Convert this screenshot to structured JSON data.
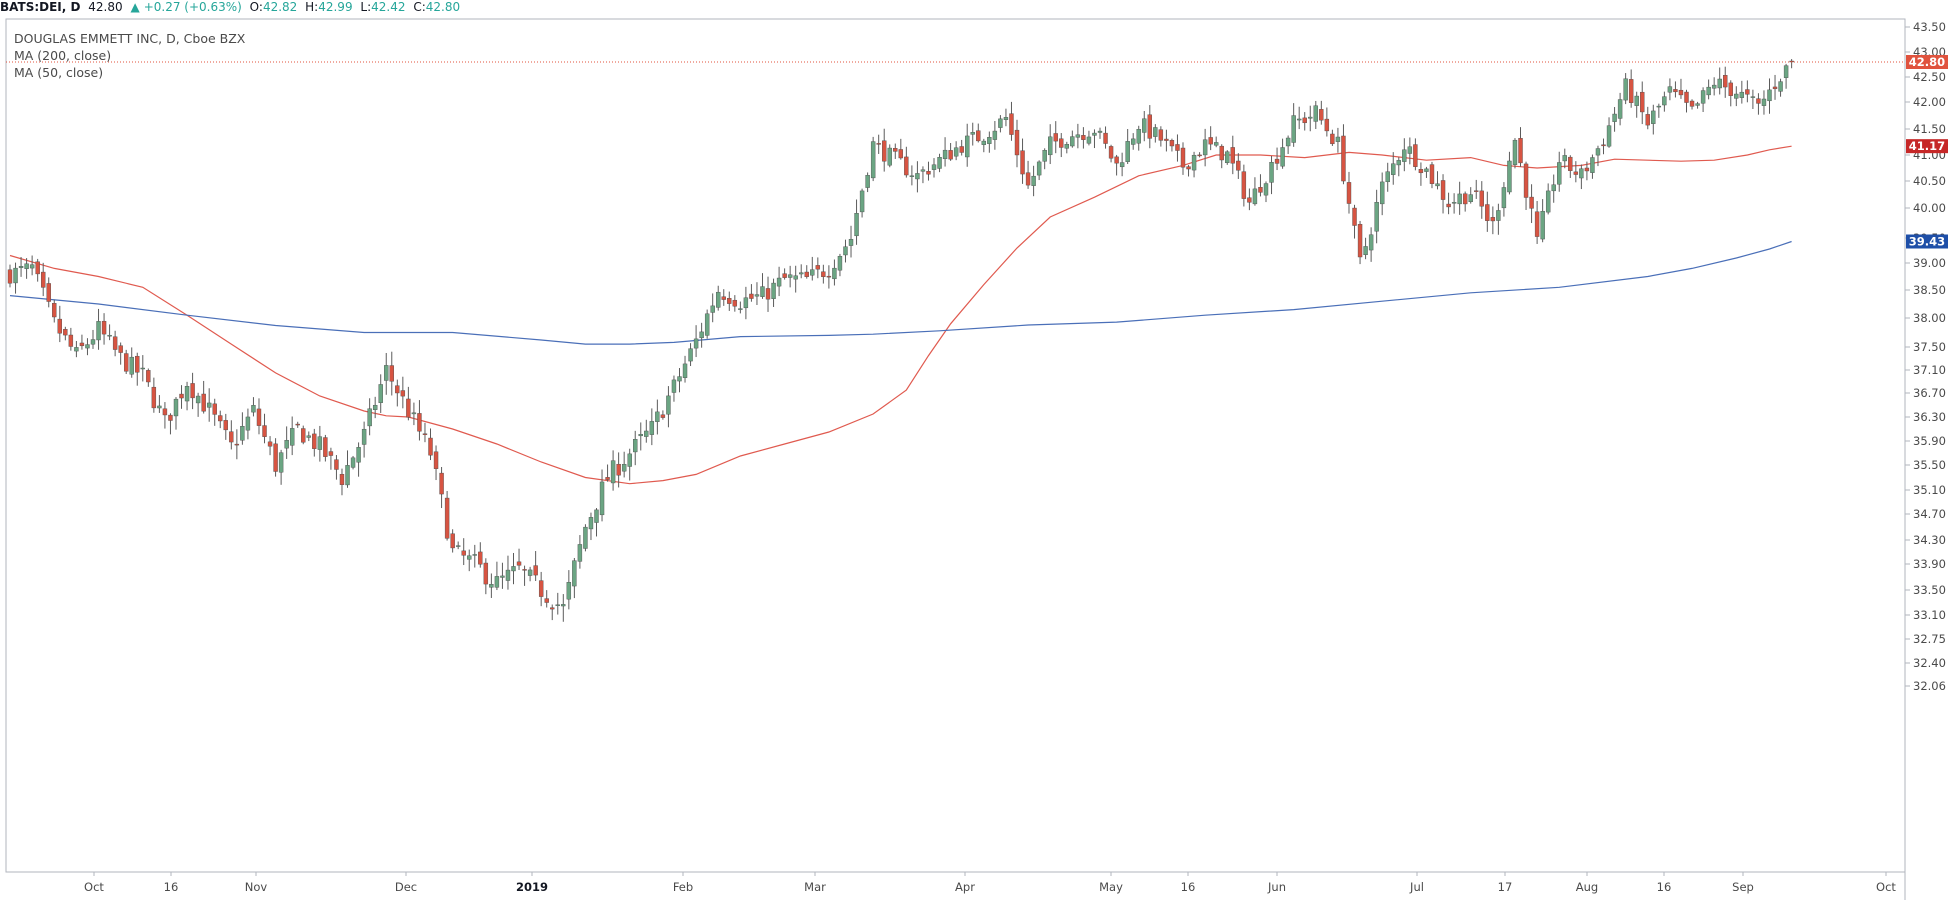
{
  "topbar": {
    "symbol": "BATS:DEI, D",
    "last": "42.80",
    "change": "+0.27 (+0.63%)",
    "o_label": "O:",
    "o": "42.82",
    "h_label": "H:",
    "h": "42.99",
    "l_label": "L:",
    "l": "42.42",
    "c_label": "C:",
    "c": "42.80"
  },
  "legend": {
    "title": "DOUGLAS EMMETT INC, D, Cboe BZX",
    "ma200": "MA (200, close)",
    "ma50": "MA (50, close)"
  },
  "colors": {
    "up_fill": "#6ba583",
    "down_fill": "#d75442",
    "wick": "#5b5b5b",
    "ma50": "#e05a4f",
    "ma200": "#4a6fb8",
    "price_tag": "#e0533e",
    "ma50_tag": "#c62828",
    "ma200_tag": "#1e4fa8",
    "axis": "#b2b5be"
  },
  "chart_data": {
    "type": "candlestick",
    "title": "DOUGLAS EMMETT INC, D, Cboe BZX",
    "ylim": [
      31.8,
      43.7
    ],
    "y_ticks": [
      "43.50",
      "43.00",
      "42.50",
      "42.00",
      "41.50",
      "41.00",
      "40.50",
      "40.00",
      "39.50",
      "39.00",
      "38.50",
      "38.00",
      "37.50",
      "37.10",
      "36.70",
      "36.30",
      "35.90",
      "35.50",
      "35.10",
      "34.70",
      "34.30",
      "33.90",
      "33.50",
      "33.10",
      "32.75",
      "32.40",
      "32.06"
    ],
    "x_ticks": [
      {
        "label": "Oct",
        "bold": false
      },
      {
        "label": "16",
        "bold": false
      },
      {
        "label": "Nov",
        "bold": false
      },
      {
        "label": "Dec",
        "bold": false
      },
      {
        "label": "2019",
        "bold": true
      },
      {
        "label": "Feb",
        "bold": false
      },
      {
        "label": "Mar",
        "bold": false
      },
      {
        "label": "Apr",
        "bold": false
      },
      {
        "label": "May",
        "bold": false
      },
      {
        "label": "16",
        "bold": false
      },
      {
        "label": "Jun",
        "bold": false
      },
      {
        "label": "Jul",
        "bold": false
      },
      {
        "label": "17",
        "bold": false
      },
      {
        "label": "Aug",
        "bold": false
      },
      {
        "label": "16",
        "bold": false
      },
      {
        "label": "Sep",
        "bold": false
      },
      {
        "label": "Oct",
        "bold": false
      }
    ],
    "anchor_points": [
      [
        0,
        38.8
      ],
      [
        4,
        38.9
      ],
      [
        8,
        37.9
      ],
      [
        12,
        37.35
      ],
      [
        16,
        37.8
      ],
      [
        20,
        37.3
      ],
      [
        24,
        37.0
      ],
      [
        28,
        36.2
      ],
      [
        32,
        36.9
      ],
      [
        36,
        36.4
      ],
      [
        40,
        35.8
      ],
      [
        44,
        36.4
      ],
      [
        48,
        35.5
      ],
      [
        52,
        36.1
      ],
      [
        56,
        35.8
      ],
      [
        60,
        35.3
      ],
      [
        64,
        36.0
      ],
      [
        68,
        37.1
      ],
      [
        72,
        36.4
      ],
      [
        76,
        35.7
      ],
      [
        80,
        34.1
      ],
      [
        84,
        33.9
      ],
      [
        88,
        33.6
      ],
      [
        92,
        33.8
      ],
      [
        96,
        33.5
      ],
      [
        100,
        33.2
      ],
      [
        104,
        34.5
      ],
      [
        108,
        35.3
      ],
      [
        112,
        35.7
      ],
      [
        116,
        36.1
      ],
      [
        120,
        36.8
      ],
      [
        124,
        37.6
      ],
      [
        128,
        38.5
      ],
      [
        132,
        38.3
      ],
      [
        136,
        38.4
      ],
      [
        140,
        38.7
      ],
      [
        144,
        38.7
      ],
      [
        148,
        38.9
      ],
      [
        152,
        39.5
      ],
      [
        156,
        41.2
      ],
      [
        160,
        40.9
      ],
      [
        164,
        40.6
      ],
      [
        168,
        40.9
      ],
      [
        172,
        41.2
      ],
      [
        176,
        41.4
      ],
      [
        180,
        41.7
      ],
      [
        184,
        40.4
      ],
      [
        188,
        41.2
      ],
      [
        192,
        41.4
      ],
      [
        196,
        41.5
      ],
      [
        200,
        40.8
      ],
      [
        204,
        41.6
      ],
      [
        208,
        41.3
      ],
      [
        212,
        40.8
      ],
      [
        216,
        41.2
      ],
      [
        220,
        41.0
      ],
      [
        224,
        40.1
      ],
      [
        228,
        40.8
      ],
      [
        232,
        41.6
      ],
      [
        236,
        41.8
      ],
      [
        240,
        41.2
      ],
      [
        244,
        39.0
      ],
      [
        248,
        40.4
      ],
      [
        252,
        41.2
      ],
      [
        256,
        40.7
      ],
      [
        260,
        40.1
      ],
      [
        264,
        40.3
      ],
      [
        268,
        39.7
      ],
      [
        272,
        41.3
      ],
      [
        276,
        39.4
      ],
      [
        280,
        40.9
      ],
      [
        284,
        40.6
      ],
      [
        288,
        41.3
      ],
      [
        292,
        42.3
      ],
      [
        296,
        41.6
      ],
      [
        300,
        42.2
      ],
      [
        304,
        41.8
      ],
      [
        308,
        42.4
      ],
      [
        312,
        42.2
      ],
      [
        316,
        41.9
      ],
      [
        320,
        42.52
      ],
      [
        322,
        42.8
      ]
    ],
    "series": [
      {
        "name": "MA (50, close)",
        "last": 41.17,
        "points": [
          [
            0,
            39.15
          ],
          [
            8,
            38.9
          ],
          [
            16,
            38.75
          ],
          [
            24,
            38.55
          ],
          [
            32,
            38.05
          ],
          [
            40,
            37.55
          ],
          [
            48,
            37.05
          ],
          [
            56,
            36.65
          ],
          [
            64,
            36.4
          ],
          [
            68,
            36.32
          ],
          [
            72,
            36.3
          ],
          [
            80,
            36.1
          ],
          [
            88,
            35.85
          ],
          [
            96,
            35.55
          ],
          [
            104,
            35.3
          ],
          [
            112,
            35.2
          ],
          [
            118,
            35.25
          ],
          [
            124,
            35.35
          ],
          [
            132,
            35.65
          ],
          [
            140,
            35.85
          ],
          [
            148,
            36.05
          ],
          [
            156,
            36.35
          ],
          [
            162,
            36.75
          ],
          [
            166,
            37.35
          ],
          [
            170,
            37.9
          ],
          [
            176,
            38.6
          ],
          [
            182,
            39.3
          ],
          [
            188,
            39.85
          ],
          [
            196,
            40.2
          ],
          [
            204,
            40.6
          ],
          [
            212,
            40.8
          ],
          [
            218,
            41.0
          ],
          [
            226,
            41.0
          ],
          [
            234,
            40.95
          ],
          [
            242,
            41.05
          ],
          [
            248,
            41.0
          ],
          [
            256,
            40.9
          ],
          [
            264,
            40.95
          ],
          [
            270,
            40.8
          ],
          [
            276,
            40.75
          ],
          [
            284,
            40.8
          ],
          [
            290,
            40.92
          ],
          [
            296,
            40.9
          ],
          [
            302,
            40.88
          ],
          [
            308,
            40.9
          ],
          [
            314,
            41.0
          ],
          [
            318,
            41.1
          ],
          [
            322,
            41.17
          ]
        ]
      },
      {
        "name": "MA (200, close)",
        "last": 39.43,
        "points": [
          [
            0,
            38.4
          ],
          [
            16,
            38.25
          ],
          [
            32,
            38.05
          ],
          [
            48,
            37.87
          ],
          [
            64,
            37.75
          ],
          [
            80,
            37.75
          ],
          [
            96,
            37.62
          ],
          [
            104,
            37.55
          ],
          [
            112,
            37.55
          ],
          [
            120,
            37.58
          ],
          [
            132,
            37.68
          ],
          [
            148,
            37.7
          ],
          [
            156,
            37.72
          ],
          [
            168,
            37.78
          ],
          [
            184,
            37.88
          ],
          [
            200,
            37.93
          ],
          [
            216,
            38.05
          ],
          [
            232,
            38.15
          ],
          [
            248,
            38.3
          ],
          [
            264,
            38.45
          ],
          [
            280,
            38.55
          ],
          [
            296,
            38.75
          ],
          [
            304,
            38.9
          ],
          [
            312,
            39.1
          ],
          [
            318,
            39.28
          ],
          [
            322,
            39.43
          ]
        ]
      }
    ],
    "last_price": 42.8
  }
}
